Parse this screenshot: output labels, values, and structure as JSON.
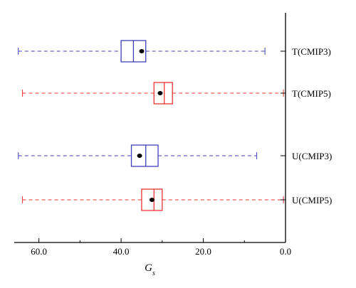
{
  "chart_data": {
    "type": "boxplot",
    "orientation": "horizontal",
    "xlabel": "G_s",
    "xlabel_main": "G",
    "xlabel_sub": "s",
    "x_reversed": true,
    "xlim": [
      66,
      0
    ],
    "xticks": [
      60,
      40,
      20,
      0
    ],
    "xtick_labels": [
      "60.0",
      "40.0",
      "20.0",
      "0.0"
    ],
    "categories": [
      "T(CMIP3)",
      "T(CMIP5)",
      "U(CMIP3)",
      "U(CMIP5)"
    ],
    "colors": {
      "CMIP3": "#4040b8",
      "CMIP5": "#ee3333",
      "axis": "#000000",
      "mean": "#000000"
    },
    "boxes": [
      {
        "label": "T(CMIP3)",
        "model": "CMIP3",
        "whisker_low": 5,
        "q1": 34,
        "median": 37,
        "q3": 40,
        "whisker_high": 65,
        "mean": 35
      },
      {
        "label": "T(CMIP5)",
        "model": "CMIP5",
        "whisker_low": 0.5,
        "q1": 27.5,
        "median": 29.5,
        "q3": 32,
        "whisker_high": 64,
        "mean": 30.5
      },
      {
        "label": "U(CMIP3)",
        "model": "CMIP3",
        "whisker_low": 7,
        "q1": 31,
        "median": 34,
        "q3": 37.5,
        "whisker_high": 65,
        "mean": 35.5
      },
      {
        "label": "U(CMIP5)",
        "model": "CMIP5",
        "whisker_low": 0.5,
        "q1": 30,
        "median": 32,
        "q3": 35,
        "whisker_high": 64,
        "mean": 32.5
      }
    ]
  }
}
